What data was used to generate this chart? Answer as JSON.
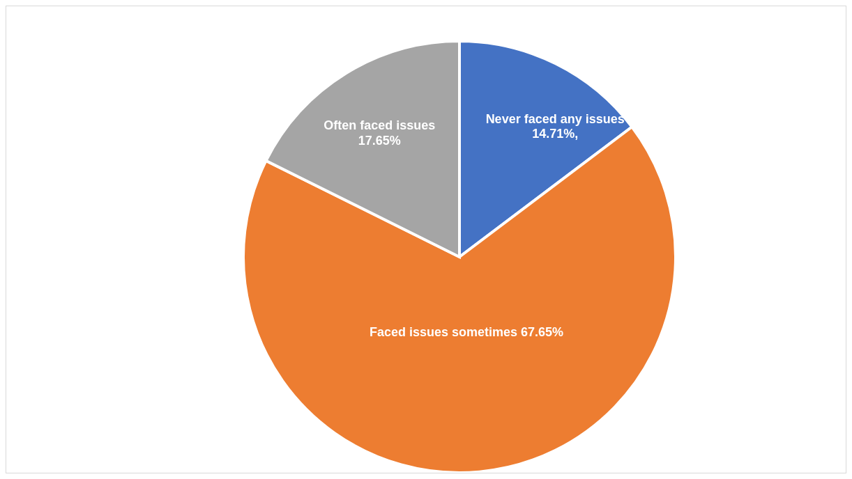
{
  "chart_data": {
    "type": "pie",
    "categories": [
      "Never faced any issues",
      "Faced issues sometimes",
      "Often faced issues"
    ],
    "values": [
      14.71,
      67.65,
      17.65
    ],
    "colors": [
      "#4472c4",
      "#ed7d31",
      "#a5a5a5"
    ],
    "value_labels": [
      "14.71%,",
      "67.65%",
      "17.65%"
    ],
    "legend": false
  }
}
